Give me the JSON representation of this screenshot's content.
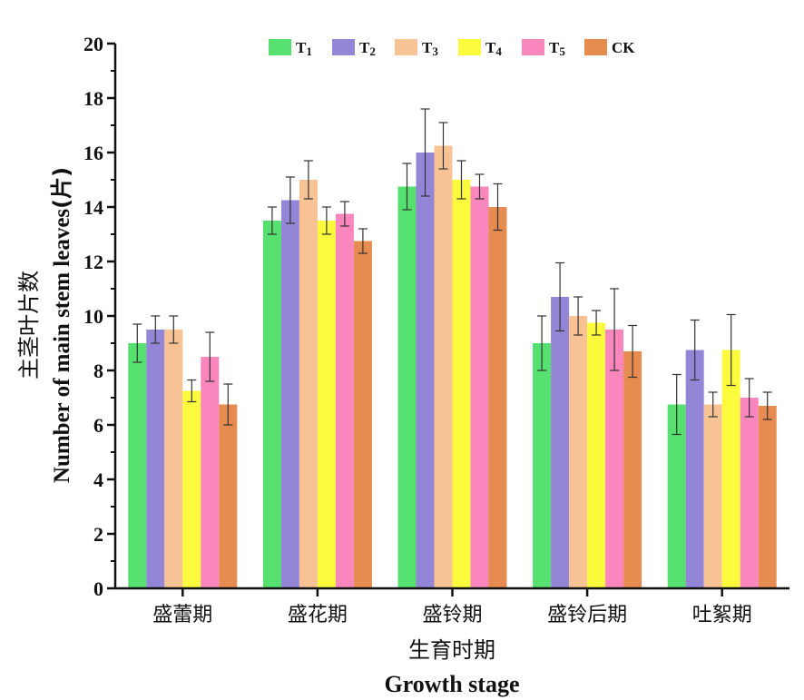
{
  "chart_data": {
    "type": "bar",
    "xlabel_cn": "生育时期",
    "xlabel_en": "Growth stage",
    "ylabel_cn": "主茎叶片数",
    "ylabel_en": "Number of main stem leaves",
    "ylabel_unit": "(片)",
    "ylim": [
      0,
      20
    ],
    "yticks": [
      0,
      2,
      4,
      6,
      8,
      10,
      12,
      14,
      16,
      18,
      20
    ],
    "categories": [
      "盛蕾期",
      "盛花期",
      "盛铃期",
      "盛铃后期",
      "吐絮期"
    ],
    "legend_position": "top",
    "series": [
      {
        "name": "T",
        "subscript": "1",
        "color": "#55e06f",
        "values": [
          9.0,
          13.5,
          14.75,
          9.0,
          6.75
        ],
        "errors": [
          0.7,
          0.5,
          0.85,
          1.0,
          1.1
        ]
      },
      {
        "name": "T",
        "subscript": "2",
        "color": "#9386d6",
        "values": [
          9.5,
          14.25,
          16.0,
          10.7,
          8.75
        ],
        "errors": [
          0.5,
          0.85,
          1.6,
          1.25,
          1.1
        ]
      },
      {
        "name": "T",
        "subscript": "3",
        "color": "#f8c394",
        "values": [
          9.5,
          15.0,
          16.25,
          10.0,
          6.75
        ],
        "errors": [
          0.5,
          0.7,
          0.85,
          0.7,
          0.45
        ]
      },
      {
        "name": "T",
        "subscript": "4",
        "color": "#fbfa3c",
        "values": [
          7.25,
          13.5,
          15.0,
          9.75,
          8.75
        ],
        "errors": [
          0.4,
          0.5,
          0.7,
          0.45,
          1.3
        ]
      },
      {
        "name": "T",
        "subscript": "5",
        "color": "#fa86be",
        "values": [
          8.5,
          13.75,
          14.75,
          9.5,
          7.0
        ],
        "errors": [
          0.9,
          0.45,
          0.45,
          1.5,
          0.7
        ]
      },
      {
        "name": "CK",
        "subscript": "",
        "color": "#e78c50",
        "values": [
          6.75,
          12.75,
          14.0,
          8.7,
          6.7
        ],
        "errors": [
          0.75,
          0.45,
          0.85,
          0.95,
          0.5
        ]
      }
    ]
  }
}
